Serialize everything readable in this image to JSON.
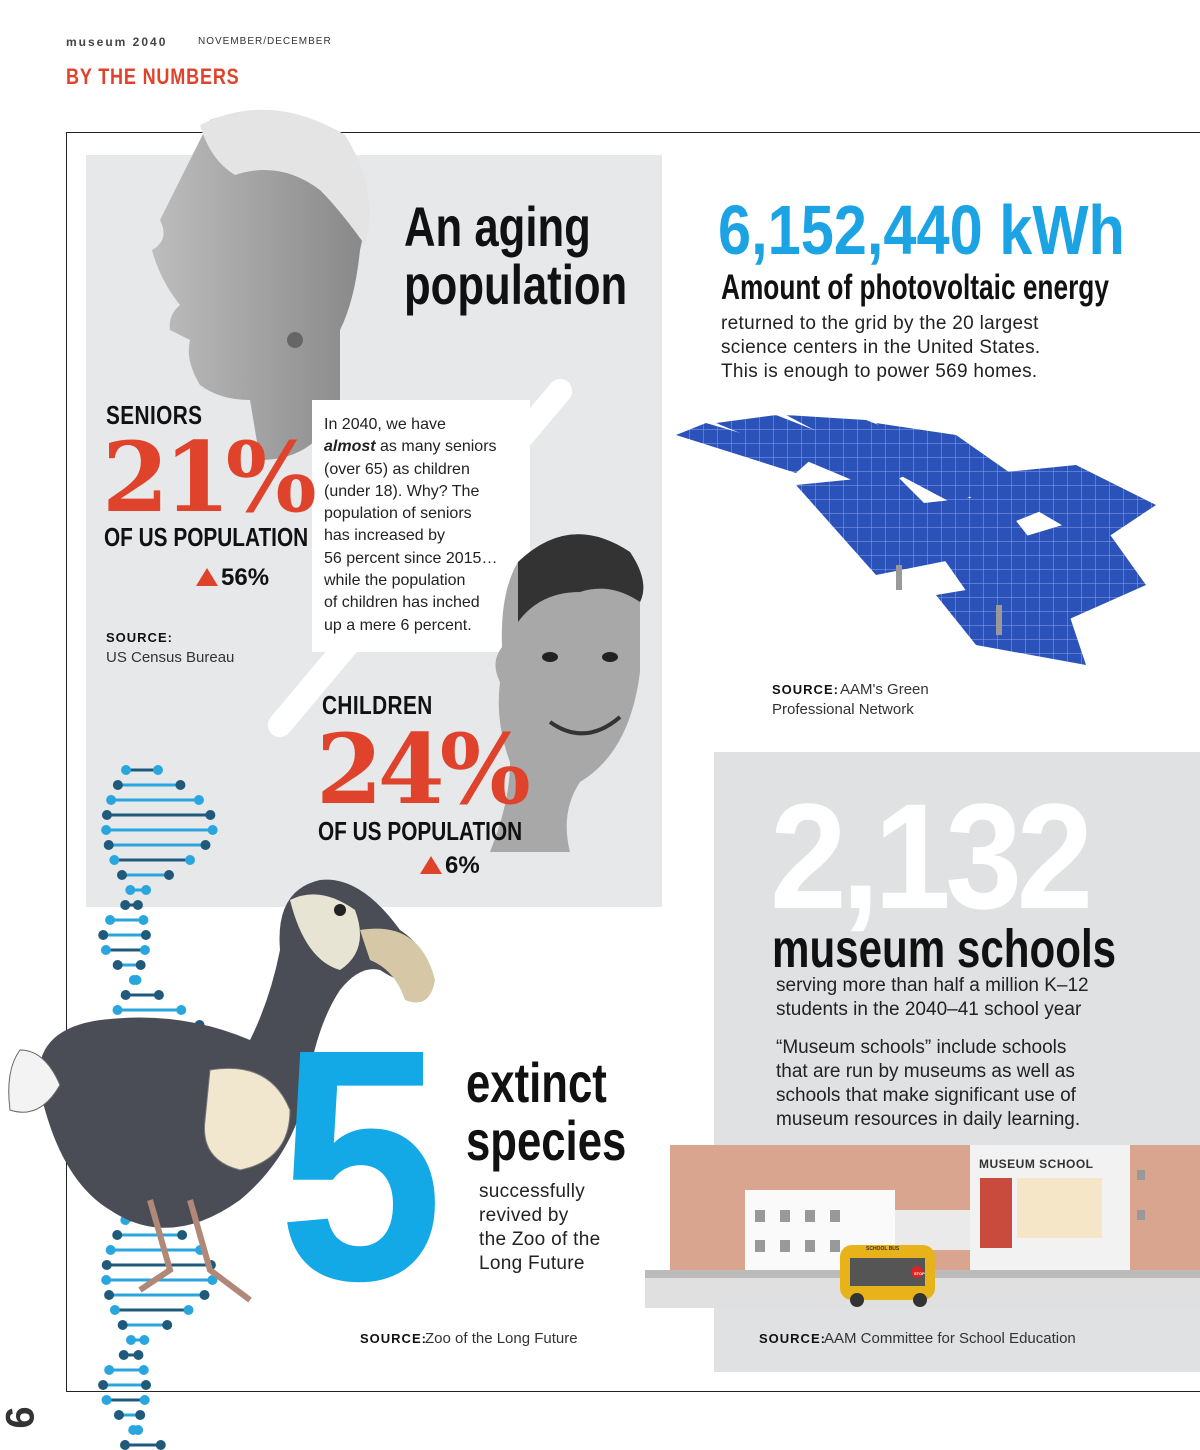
{
  "header": {
    "brand": "museum 2040",
    "issue": "NOVEMBER/DECEMBER",
    "section": "BY THE NUMBERS"
  },
  "aging": {
    "title_line1": "An aging",
    "title_line2": "population",
    "callout": [
      "In 2040, we have",
      "almost",
      "as many seniors",
      "(over 65) as children",
      "(under 18). Why? The",
      "population of seniors",
      "has increased by",
      "56 percent since 2015…",
      "while the population",
      "of children has inched",
      "up a mere 6 percent."
    ],
    "seniors": {
      "label": "SENIORS",
      "percent": "21%",
      "sub": "OF US POPULATION",
      "change": "56%"
    },
    "children": {
      "label": "CHILDREN",
      "percent": "24%",
      "sub": "OF US POPULATION",
      "change": "6%"
    },
    "source_label": "SOURCE:",
    "source": "US Census Bureau"
  },
  "energy": {
    "figure": "6,152,440 kWh",
    "subtitle": "Amount of photovoltaic energy",
    "desc": [
      "returned to the grid by the 20 largest",
      "science centers in the United States.",
      "This is enough to power 569 homes."
    ],
    "source_label": "SOURCE:",
    "source_line1": "AAM's Green",
    "source_line2": "Professional Network"
  },
  "schools": {
    "figure": "2,132",
    "title": "museum schools",
    "desc": [
      "serving more than half a million K–12",
      "students in the 2040–41 school year"
    ],
    "note": [
      "“Museum schools” include schools",
      "that are run by museums as well as",
      "schools that make significant use of",
      "museum resources in daily learning."
    ],
    "building_sign": "MUSEUM SCHOOL",
    "bus_sign": "SCHOOL BUS",
    "stop_sign": "STOP",
    "source_label": "SOURCE:",
    "source": "AAM Committee for School Education"
  },
  "species": {
    "figure": "5",
    "title_line1": "extinct",
    "title_line2": "species",
    "desc": [
      "successfully",
      "revived by",
      "the Zoo of the",
      "Long Future"
    ],
    "source_label": "SOURCE:",
    "source": "Zoo of the Long Future"
  },
  "page_number": "6",
  "colors": {
    "accent_red": "#e0432b",
    "accent_blue": "#1ca3e3",
    "panel_gray": "#e6e8ea"
  }
}
